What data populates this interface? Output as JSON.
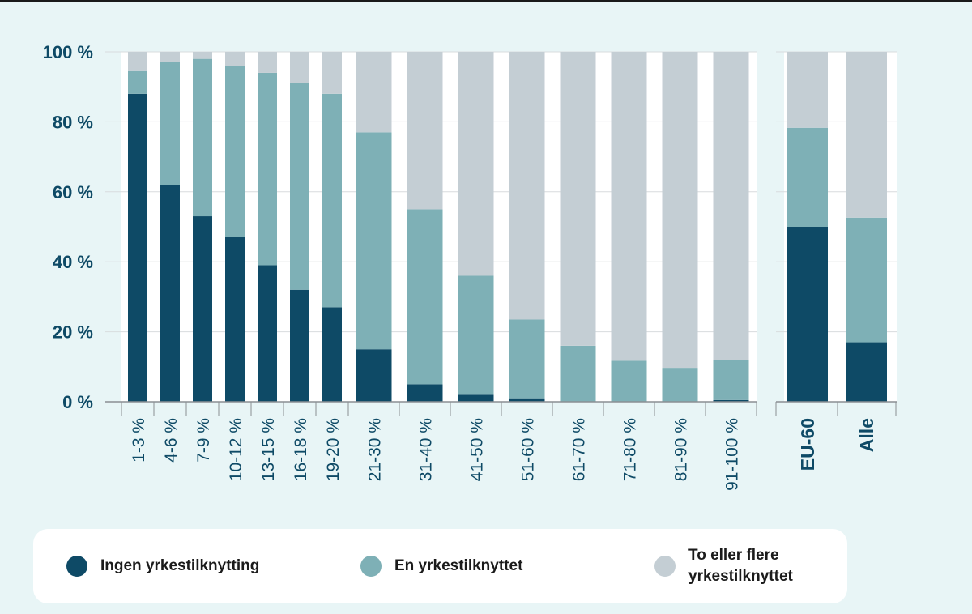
{
  "chart_data": {
    "type": "bar",
    "stacked": true,
    "ylim": [
      0,
      100
    ],
    "y_ticks": [
      0,
      20,
      40,
      60,
      80,
      100
    ],
    "y_tick_labels": [
      "0 %",
      "20 %",
      "40 %",
      "60 %",
      "80 %",
      "100 %"
    ],
    "grid": true,
    "legend_position": "bottom",
    "categories": [
      "1-3 %",
      "4-6 %",
      "7-9 %",
      "10-12 %",
      "13-15 %",
      "16-18 %",
      "19-20 %",
      "21-30 %",
      "31-40 %",
      "41-50 %",
      "51-60 %",
      "61-70 %",
      "71-80 %",
      "81-90 %",
      "91-100 %",
      "EU-60",
      "Alle"
    ],
    "series": [
      {
        "name": "Ingen yrkestilknytting",
        "color": "#0e4a66",
        "values": [
          88,
          62,
          53,
          47,
          39,
          32,
          27,
          15,
          5,
          2,
          1,
          0,
          0,
          0,
          0.5,
          50,
          17
        ]
      },
      {
        "name": "En yrkestilknyttet",
        "color": "#7eb0b6",
        "values": [
          6.5,
          35,
          45,
          49,
          55,
          59,
          61,
          62,
          50,
          34,
          22.5,
          16,
          11.7,
          9.7,
          11.5,
          28.3,
          35.6
        ]
      },
      {
        "name": "To eller flere\nyrkestilknyttet",
        "color": "#c4ced4",
        "values": [
          5.5,
          3,
          2,
          4,
          6,
          9,
          12,
          23,
          45,
          64,
          76.5,
          84,
          88.3,
          90.3,
          88,
          21.7,
          47.4
        ]
      }
    ]
  },
  "colors": {
    "background": "#e8f5f6",
    "axis_text": "#0e4a66",
    "grid": "#d8dcde"
  }
}
